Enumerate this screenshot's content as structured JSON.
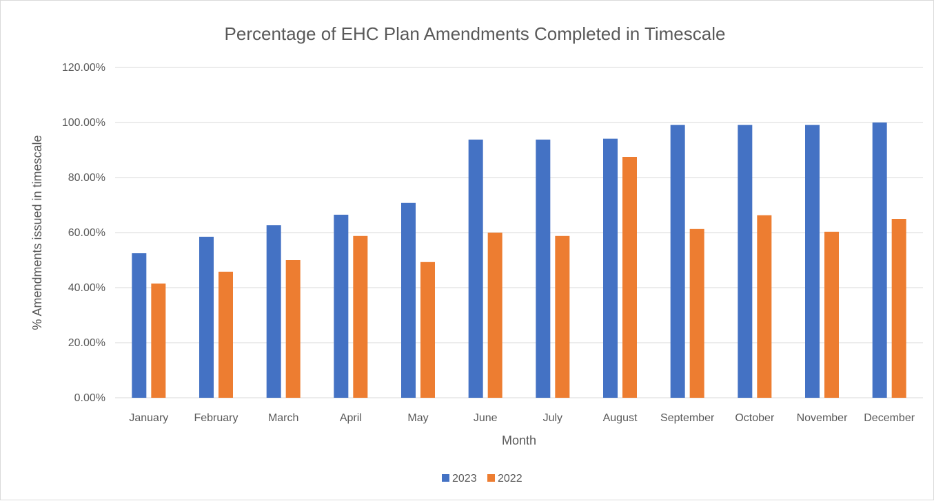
{
  "chart_data": {
    "type": "bar",
    "title": "Percentage of EHC Plan Amendments  Completed  in Timescale",
    "xlabel": "Month",
    "ylabel": "% Amendments issued in timescale",
    "categories": [
      "January",
      "February",
      "March",
      "April",
      "May",
      "June",
      "July",
      "August",
      "September",
      "October",
      "November",
      "December"
    ],
    "series": [
      {
        "name": "2023",
        "color": "#4472C4",
        "values": [
          52.5,
          58.5,
          62.7,
          66.5,
          70.8,
          93.8,
          93.8,
          94.1,
          99.1,
          99.1,
          99.1,
          100.0
        ]
      },
      {
        "name": "2022",
        "color": "#ED7D31",
        "values": [
          41.5,
          45.8,
          50.0,
          58.8,
          49.3,
          60.0,
          58.8,
          87.5,
          61.3,
          66.3,
          60.3,
          65.0
        ]
      }
    ],
    "ylim": [
      0,
      120
    ],
    "yticks": [
      0,
      20,
      40,
      60,
      80,
      100,
      120
    ],
    "ytick_labels": [
      "0.00%",
      "20.00%",
      "40.00%",
      "60.00%",
      "80.00%",
      "100.00%",
      "120.00%"
    ],
    "grid": true,
    "legend_position": "bottom"
  }
}
